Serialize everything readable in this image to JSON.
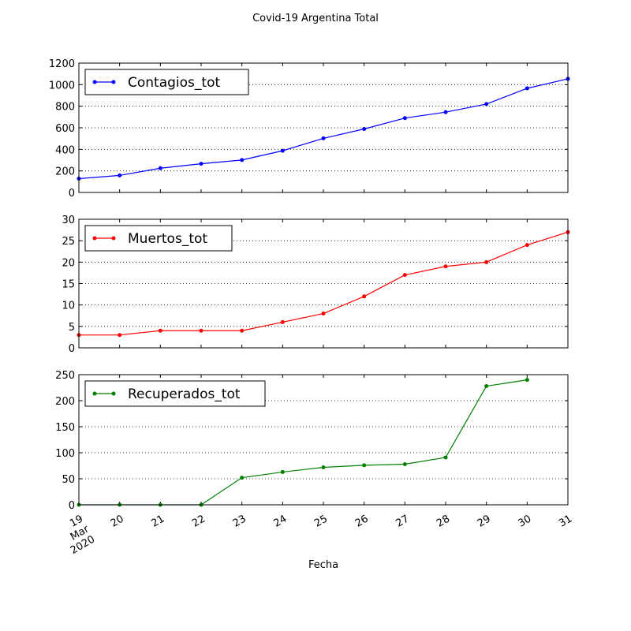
{
  "chart_data": {
    "type": "line",
    "title": "Covid-19 Argentina Total",
    "xlabel": "Fecha",
    "x": [
      "2020-03-19",
      "2020-03-20",
      "2020-03-21",
      "2020-03-22",
      "2020-03-23",
      "2020-03-24",
      "2020-03-25",
      "2020-03-26",
      "2020-03-27",
      "2020-03-28",
      "2020-03-29",
      "2020-03-30",
      "2020-03-31"
    ],
    "x_tick_labels": [
      [
        "19",
        "Mar",
        "2020"
      ],
      [
        "20"
      ],
      [
        "21"
      ],
      [
        "22"
      ],
      [
        "23"
      ],
      [
        "24"
      ],
      [
        "25"
      ],
      [
        "26"
      ],
      [
        "27"
      ],
      [
        "28"
      ],
      [
        "29"
      ],
      [
        "30"
      ],
      [
        "31"
      ]
    ],
    "grid": "y-dotted",
    "legend_position": "upper-left",
    "panels": [
      {
        "series": [
          {
            "name": "Contagios_tot",
            "color": "#0000ff",
            "values": [
              128,
              158,
              225,
              266,
              301,
              387,
              502,
              589,
              690,
              745,
              820,
              966,
              1054
            ]
          }
        ],
        "ylim": [
          0,
          1200
        ],
        "yticks": [
          0,
          200,
          400,
          600,
          800,
          1000,
          1200
        ]
      },
      {
        "series": [
          {
            "name": "Muertos_tot",
            "color": "#ff0000",
            "values": [
              3,
              3,
              4,
              4,
              4,
              6,
              8,
              12,
              17,
              19,
              20,
              24,
              27
            ]
          }
        ],
        "ylim": [
          0,
          30
        ],
        "yticks": [
          0,
          5,
          10,
          15,
          20,
          25,
          30
        ]
      },
      {
        "series": [
          {
            "name": "Recuperados_tot",
            "color": "#008000",
            "values": [
              0,
              0,
              0,
              0,
              52,
              63,
              72,
              76,
              78,
              91,
              228,
              240,
              null
            ]
          }
        ],
        "ylim": [
          0,
          250
        ],
        "yticks": [
          0,
          50,
          100,
          150,
          200,
          250
        ]
      }
    ]
  }
}
